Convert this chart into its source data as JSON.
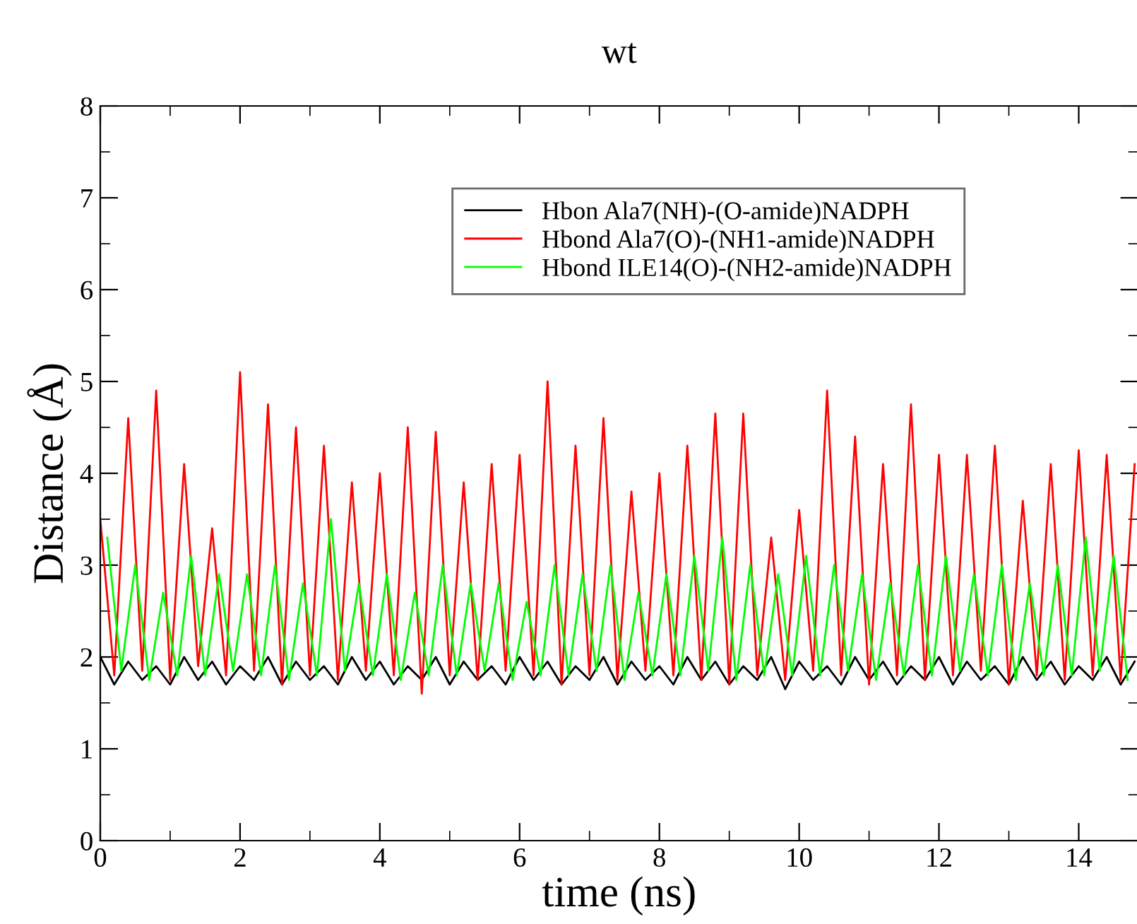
{
  "chart_data": {
    "type": "line",
    "title": "wt",
    "xlabel": "time (ns)",
    "ylabel": "Distance (Å)",
    "xlim": [
      0,
      14.85
    ],
    "ylim": [
      0,
      8
    ],
    "xticks": [
      0,
      {
        "value": 1,
        "label": null
      },
      2,
      {
        "value": 3,
        "label": null
      },
      4,
      {
        "value": 5,
        "label": null
      },
      6,
      {
        "value": 7,
        "label": null
      },
      8,
      {
        "value": 9,
        "label": null
      },
      10,
      {
        "value": 11,
        "label": null
      },
      12,
      {
        "value": 13,
        "label": null
      },
      14
    ],
    "yticks": [
      0,
      {
        "value": 0.5,
        "label": null
      },
      1,
      {
        "value": 1.5,
        "label": null
      },
      2,
      {
        "value": 2.5,
        "label": null
      },
      3,
      {
        "value": 3.5,
        "label": null
      },
      4,
      {
        "value": 4.5,
        "label": null
      },
      5,
      {
        "value": 5.5,
        "label": null
      },
      6,
      {
        "value": 6.5,
        "label": null
      },
      7,
      {
        "value": 7.5,
        "label": null
      },
      8
    ],
    "grid": false,
    "legend": "top right",
    "marker": "none",
    "line_style": "solid",
    "series": [
      {
        "name": "Hbon Ala7(NH)-(O-amide)NADPH",
        "color": "#000000",
        "x": [
          0,
          0.2,
          0.4,
          0.6,
          0.8,
          1,
          1.2,
          1.4,
          1.6,
          1.8,
          2,
          2.2,
          2.4,
          2.6,
          2.8,
          3,
          3.2,
          3.4,
          3.6,
          3.8,
          4,
          4.2,
          4.4,
          4.6,
          4.8,
          5,
          5.2,
          5.4,
          5.6,
          5.8,
          6,
          6.2,
          6.4,
          6.6,
          6.8,
          7,
          7.2,
          7.4,
          7.6,
          7.8,
          8,
          8.2,
          8.4,
          8.6,
          8.8,
          9,
          9.2,
          9.4,
          9.6,
          9.8,
          10,
          10.2,
          10.4,
          10.6,
          10.8,
          11,
          11.2,
          11.4,
          11.6,
          11.8,
          12,
          12.2,
          12.4,
          12.6,
          12.8,
          13,
          13.2,
          13.4,
          13.6,
          13.8,
          14,
          14.2,
          14.4,
          14.6,
          14.8
        ],
        "values": [
          2.0,
          1.7,
          1.95,
          1.75,
          1.9,
          1.7,
          2.0,
          1.75,
          1.95,
          1.7,
          1.9,
          1.75,
          2.0,
          1.7,
          1.95,
          1.75,
          1.9,
          1.7,
          2.0,
          1.75,
          1.95,
          1.7,
          1.9,
          1.75,
          2.0,
          1.7,
          1.95,
          1.75,
          1.9,
          1.7,
          2.0,
          1.75,
          1.95,
          1.7,
          1.9,
          1.75,
          2.0,
          1.7,
          1.95,
          1.75,
          1.9,
          1.7,
          2.0,
          1.75,
          1.95,
          1.7,
          1.9,
          1.75,
          2.0,
          1.65,
          1.95,
          1.75,
          1.9,
          1.7,
          2.0,
          1.75,
          1.95,
          1.7,
          1.9,
          1.75,
          2.0,
          1.7,
          1.95,
          1.75,
          1.9,
          1.7,
          2.0,
          1.75,
          1.95,
          1.7,
          1.9,
          1.75,
          2.0,
          1.7,
          1.95
        ]
      },
      {
        "name": "Hbond Ala7(O)-(NH1-amide)NADPH",
        "color": "#ff0000",
        "x": [
          0,
          0.2,
          0.4,
          0.6,
          0.8,
          1,
          1.2,
          1.4,
          1.6,
          1.8,
          2,
          2.2,
          2.4,
          2.6,
          2.8,
          3,
          3.2,
          3.4,
          3.6,
          3.8,
          4,
          4.2,
          4.4,
          4.6,
          4.8,
          5,
          5.2,
          5.4,
          5.6,
          5.8,
          6,
          6.2,
          6.4,
          6.6,
          6.8,
          7,
          7.2,
          7.4,
          7.6,
          7.8,
          8,
          8.2,
          8.4,
          8.6,
          8.8,
          9,
          9.2,
          9.4,
          9.6,
          9.8,
          10,
          10.2,
          10.4,
          10.6,
          10.8,
          11,
          11.2,
          11.4,
          11.6,
          11.8,
          12,
          12.2,
          12.4,
          12.6,
          12.8,
          13,
          13.2,
          13.4,
          13.6,
          13.8,
          14,
          14.2,
          14.4,
          14.6,
          14.8
        ],
        "values": [
          3.5,
          1.8,
          4.6,
          1.85,
          4.9,
          1.75,
          4.1,
          1.9,
          3.4,
          1.8,
          5.1,
          1.85,
          4.75,
          1.7,
          4.5,
          1.8,
          4.3,
          1.75,
          3.9,
          1.85,
          4.0,
          1.8,
          4.5,
          1.6,
          4.45,
          1.8,
          3.9,
          1.75,
          4.1,
          1.85,
          4.2,
          1.8,
          5.0,
          1.7,
          4.3,
          1.8,
          4.6,
          1.75,
          3.8,
          1.85,
          4.0,
          1.8,
          4.3,
          1.75,
          4.65,
          1.7,
          4.65,
          1.8,
          3.3,
          1.75,
          3.6,
          1.85,
          4.9,
          1.8,
          4.4,
          1.7,
          4.1,
          1.8,
          4.75,
          1.75,
          4.2,
          1.8,
          4.2,
          1.85,
          4.3,
          1.7,
          3.7,
          1.8,
          4.1,
          1.75,
          4.25,
          1.8,
          4.2,
          1.75,
          4.1
        ]
      },
      {
        "name": "Hbond ILE14(O)-(NH2-amide)NADPH",
        "color": "#00ff00",
        "x": [
          0.1,
          0.3,
          0.5,
          0.7,
          0.9,
          1.1,
          1.3,
          1.5,
          1.7,
          1.9,
          2.1,
          2.3,
          2.5,
          2.7,
          2.9,
          3.1,
          3.3,
          3.5,
          3.7,
          3.9,
          4.1,
          4.3,
          4.5,
          4.7,
          4.9,
          5.1,
          5.3,
          5.5,
          5.7,
          5.9,
          6.1,
          6.3,
          6.5,
          6.7,
          6.9,
          7.1,
          7.3,
          7.5,
          7.7,
          7.9,
          8.1,
          8.3,
          8.5,
          8.7,
          8.9,
          9.1,
          9.3,
          9.5,
          9.7,
          9.9,
          10.1,
          10.3,
          10.5,
          10.7,
          10.9,
          11.1,
          11.3,
          11.5,
          11.7,
          11.9,
          12.1,
          12.3,
          12.5,
          12.7,
          12.9,
          13.1,
          13.3,
          13.5,
          13.7,
          13.9,
          14.1,
          14.3,
          14.5,
          14.7
        ],
        "values": [
          3.3,
          1.85,
          3.0,
          1.75,
          2.7,
          1.8,
          3.1,
          1.8,
          2.9,
          1.85,
          2.9,
          1.8,
          3.0,
          1.75,
          2.8,
          1.8,
          3.5,
          1.85,
          2.8,
          1.8,
          2.9,
          1.75,
          2.7,
          1.8,
          3.0,
          1.8,
          2.8,
          1.85,
          2.8,
          1.75,
          2.6,
          1.8,
          3.0,
          1.8,
          2.9,
          1.85,
          3.0,
          1.75,
          2.7,
          1.8,
          2.9,
          1.8,
          3.1,
          1.85,
          3.3,
          1.75,
          3.0,
          1.8,
          2.9,
          1.8,
          3.1,
          1.8,
          3.0,
          1.85,
          2.9,
          1.75,
          2.8,
          1.8,
          3.0,
          1.8,
          3.1,
          1.85,
          2.9,
          1.8,
          3.0,
          1.75,
          2.8,
          1.8,
          3.0,
          1.8,
          3.3,
          1.85,
          3.1,
          1.75
        ]
      }
    ]
  }
}
